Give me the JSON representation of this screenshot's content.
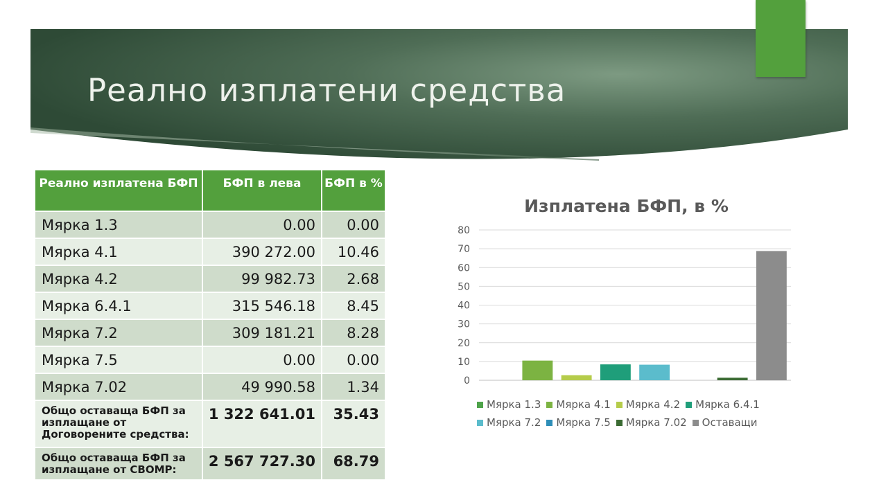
{
  "slide": {
    "title": "Реално изплатени средства"
  },
  "table": {
    "headers": [
      "Реално изплатена БФП",
      "БФП в лева",
      "БФП в %"
    ],
    "rows": [
      {
        "name": "Мярка 1.3",
        "lev": "0.00",
        "pct": "0.00"
      },
      {
        "name": "Мярка 4.1",
        "lev": "390 272.00",
        "pct": "10.46"
      },
      {
        "name": "Мярка 4.2",
        "lev": "99 982.73",
        "pct": "2.68"
      },
      {
        "name": "Мярка 6.4.1",
        "lev": "315 546.18",
        "pct": "8.45"
      },
      {
        "name": "Мярка 7.2",
        "lev": "309 181.21",
        "pct": "8.28"
      },
      {
        "name": "Мярка 7.5",
        "lev": "0.00",
        "pct": "0.00"
      },
      {
        "name": "Мярка 7.02",
        "lev": "49 990.58",
        "pct": "1.34"
      }
    ],
    "totals": [
      {
        "name": "Общо оставаща БФП за изплащане от Договорените средства:",
        "lev": "1 322 641.01",
        "pct": "35.43"
      },
      {
        "name": "Общо оставаща БФП за изплащане от СВОМР:",
        "lev": "2 567 727.30",
        "pct": "68.79"
      }
    ]
  },
  "chart_data": {
    "type": "bar",
    "title": "Изплатена БФП, в %",
    "ylim": [
      0,
      80
    ],
    "yticks": [
      0,
      10,
      20,
      30,
      40,
      50,
      60,
      70,
      80
    ],
    "grid": true,
    "legend_position": "bottom",
    "series": [
      {
        "name": "Мярка 1.3",
        "value": 0.0,
        "color": "#4ea34a"
      },
      {
        "name": "Мярка 4.1",
        "value": 10.46,
        "color": "#7cb342"
      },
      {
        "name": "Мярка 4.2",
        "value": 2.68,
        "color": "#b5cc4a"
      },
      {
        "name": "Мярка 6.4.1",
        "value": 8.45,
        "color": "#1f9e7a"
      },
      {
        "name": "Мярка 7.2",
        "value": 8.28,
        "color": "#5bbccc"
      },
      {
        "name": "Мярка 7.5",
        "value": 0.0,
        "color": "#2e8eb8"
      },
      {
        "name": "Мярка 7.02",
        "value": 1.34,
        "color": "#3b6b33"
      },
      {
        "name": "Оставащи",
        "value": 68.79,
        "color": "#8c8c8c"
      }
    ]
  }
}
